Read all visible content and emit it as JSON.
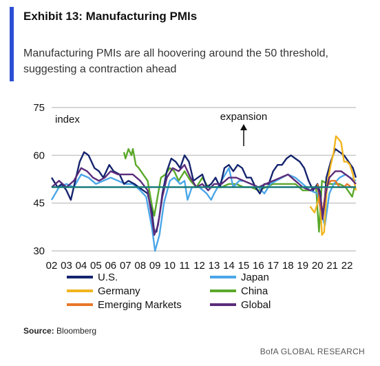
{
  "header": {
    "title": "Exhibit 13: Manufacturing PMIs",
    "subtitle": "Manufacturing PMIs are all hoovering around the 50 threshold, suggesting a contraction ahead"
  },
  "source": {
    "label": "Source:",
    "text": "Bloomberg"
  },
  "footer": {
    "brand": "BofA GLOBAL RESEARCH"
  },
  "colors": {
    "accent": "#2b4fd4",
    "us": "#14246e",
    "japan": "#4aa6e8",
    "germany": "#f2b51d",
    "china": "#5aa82a",
    "em": "#e8782a",
    "global": "#5b2b7a",
    "threshold": "#1a7a7a",
    "grid": "#c8c8c8"
  },
  "chart_data": {
    "type": "line",
    "ylabel": "index",
    "annotation": "expansion",
    "ylim": [
      30,
      75
    ],
    "yticks": [
      30,
      45,
      60,
      75
    ],
    "xlim": [
      2002.0,
      2022.6
    ],
    "xtick_labels": [
      "02",
      "03",
      "04",
      "05",
      "06",
      "07",
      "08",
      "09",
      "10",
      "11",
      "12",
      "13",
      "14",
      "15",
      "16",
      "17",
      "18",
      "19",
      "20",
      "21",
      "22"
    ],
    "threshold": 50,
    "grid": true,
    "legend_placement": "bottom",
    "series": [
      {
        "name": "U.S.",
        "key": "us",
        "points": [
          [
            2002.0,
            53
          ],
          [
            2002.4,
            50
          ],
          [
            2002.7,
            51
          ],
          [
            2003.0,
            49
          ],
          [
            2003.3,
            46
          ],
          [
            2003.6,
            52
          ],
          [
            2003.9,
            58
          ],
          [
            2004.2,
            61
          ],
          [
            2004.5,
            60
          ],
          [
            2004.9,
            56
          ],
          [
            2005.2,
            55
          ],
          [
            2005.5,
            53
          ],
          [
            2005.9,
            57
          ],
          [
            2006.2,
            55
          ],
          [
            2006.6,
            54
          ],
          [
            2006.9,
            51
          ],
          [
            2007.2,
            52
          ],
          [
            2007.6,
            51
          ],
          [
            2007.9,
            50
          ],
          [
            2008.2,
            49
          ],
          [
            2008.5,
            48
          ],
          [
            2008.8,
            42
          ],
          [
            2008.95,
            36
          ],
          [
            2009.1,
            36
          ],
          [
            2009.3,
            41
          ],
          [
            2009.5,
            48
          ],
          [
            2009.8,
            55
          ],
          [
            2010.1,
            59
          ],
          [
            2010.4,
            58
          ],
          [
            2010.7,
            56
          ],
          [
            2011.0,
            60
          ],
          [
            2011.3,
            58
          ],
          [
            2011.6,
            52
          ],
          [
            2011.9,
            53
          ],
          [
            2012.2,
            54
          ],
          [
            2012.5,
            50
          ],
          [
            2012.8,
            51
          ],
          [
            2013.1,
            53
          ],
          [
            2013.4,
            50
          ],
          [
            2013.7,
            56
          ],
          [
            2014.0,
            57
          ],
          [
            2014.3,
            55
          ],
          [
            2014.6,
            57
          ],
          [
            2014.9,
            56
          ],
          [
            2015.2,
            53
          ],
          [
            2015.5,
            53
          ],
          [
            2015.8,
            50
          ],
          [
            2016.1,
            48
          ],
          [
            2016.4,
            51
          ],
          [
            2016.7,
            51
          ],
          [
            2017.0,
            55
          ],
          [
            2017.3,
            57
          ],
          [
            2017.6,
            57
          ],
          [
            2017.9,
            59
          ],
          [
            2018.2,
            60
          ],
          [
            2018.5,
            59
          ],
          [
            2018.8,
            58
          ],
          [
            2019.1,
            56
          ],
          [
            2019.4,
            52
          ],
          [
            2019.7,
            49
          ],
          [
            2020.0,
            51
          ],
          [
            2020.2,
            48
          ],
          [
            2020.3,
            42
          ],
          [
            2020.45,
            44
          ],
          [
            2020.6,
            53
          ],
          [
            2020.9,
            58
          ],
          [
            2021.2,
            62
          ],
          [
            2021.5,
            61
          ],
          [
            2021.8,
            60
          ],
          [
            2022.1,
            58
          ],
          [
            2022.4,
            56
          ],
          [
            2022.6,
            53
          ]
        ]
      },
      {
        "name": "Japan",
        "key": "japan",
        "points": [
          [
            2002.0,
            46
          ],
          [
            2002.5,
            50
          ],
          [
            2003.0,
            51
          ],
          [
            2003.5,
            50
          ],
          [
            2004.0,
            54
          ],
          [
            2004.5,
            53
          ],
          [
            2005.0,
            51
          ],
          [
            2005.5,
            52
          ],
          [
            2006.0,
            53
          ],
          [
            2006.5,
            52
          ],
          [
            2007.0,
            51
          ],
          [
            2007.5,
            51
          ],
          [
            2008.0,
            49
          ],
          [
            2008.4,
            47
          ],
          [
            2008.8,
            37
          ],
          [
            2009.0,
            30
          ],
          [
            2009.3,
            35
          ],
          [
            2009.6,
            45
          ],
          [
            2010.0,
            52
          ],
          [
            2010.3,
            53
          ],
          [
            2010.7,
            51
          ],
          [
            2011.0,
            52
          ],
          [
            2011.2,
            46
          ],
          [
            2011.5,
            50
          ],
          [
            2012.0,
            50
          ],
          [
            2012.5,
            48
          ],
          [
            2012.8,
            46
          ],
          [
            2013.0,
            48
          ],
          [
            2013.5,
            52
          ],
          [
            2014.0,
            56
          ],
          [
            2014.3,
            50
          ],
          [
            2014.7,
            52
          ],
          [
            2015.0,
            52
          ],
          [
            2015.5,
            51
          ],
          [
            2016.0,
            50
          ],
          [
            2016.4,
            48
          ],
          [
            2016.8,
            51
          ],
          [
            2017.2,
            52
          ],
          [
            2017.6,
            53
          ],
          [
            2018.0,
            54
          ],
          [
            2018.5,
            53
          ],
          [
            2019.0,
            51
          ],
          [
            2019.5,
            49
          ],
          [
            2020.0,
            48
          ],
          [
            2020.3,
            41
          ],
          [
            2020.5,
            38
          ],
          [
            2020.8,
            48
          ],
          [
            2021.1,
            51
          ],
          [
            2021.5,
            53
          ],
          [
            2021.9,
            54
          ],
          [
            2022.2,
            53
          ],
          [
            2022.6,
            52
          ]
        ]
      },
      {
        "name": "Germany",
        "key": "germany",
        "points": [
          [
            2019.5,
            44
          ],
          [
            2019.8,
            42
          ],
          [
            2020.0,
            45
          ],
          [
            2020.15,
            48
          ],
          [
            2020.3,
            35
          ],
          [
            2020.45,
            36
          ],
          [
            2020.65,
            51
          ],
          [
            2020.9,
            57
          ],
          [
            2021.1,
            61
          ],
          [
            2021.25,
            66
          ],
          [
            2021.45,
            65
          ],
          [
            2021.6,
            64
          ],
          [
            2021.8,
            58
          ],
          [
            2022.0,
            58
          ],
          [
            2022.2,
            57
          ],
          [
            2022.4,
            54
          ],
          [
            2022.6,
            49
          ]
        ]
      },
      {
        "name": "China",
        "key": "china",
        "points": [
          [
            2006.9,
            61
          ],
          [
            2007.0,
            59
          ],
          [
            2007.2,
            62
          ],
          [
            2007.4,
            60
          ],
          [
            2007.5,
            62
          ],
          [
            2007.7,
            57
          ],
          [
            2007.9,
            56
          ],
          [
            2008.2,
            54
          ],
          [
            2008.5,
            52
          ],
          [
            2008.8,
            44
          ],
          [
            2008.95,
            41
          ],
          [
            2009.1,
            45
          ],
          [
            2009.4,
            53
          ],
          [
            2009.7,
            54
          ],
          [
            2010.0,
            56
          ],
          [
            2010.3,
            55
          ],
          [
            2010.6,
            52
          ],
          [
            2011.0,
            55
          ],
          [
            2011.4,
            52
          ],
          [
            2011.8,
            50
          ],
          [
            2012.2,
            53
          ],
          [
            2012.6,
            50
          ],
          [
            2013.0,
            50
          ],
          [
            2013.5,
            50
          ],
          [
            2014.0,
            51
          ],
          [
            2014.5,
            51
          ],
          [
            2015.0,
            50
          ],
          [
            2015.5,
            50
          ],
          [
            2016.0,
            49
          ],
          [
            2016.5,
            50
          ],
          [
            2017.0,
            51
          ],
          [
            2017.5,
            51
          ],
          [
            2018.0,
            51
          ],
          [
            2018.5,
            51
          ],
          [
            2019.0,
            49
          ],
          [
            2019.5,
            49
          ],
          [
            2019.9,
            50
          ],
          [
            2020.1,
            36
          ],
          [
            2020.3,
            52
          ],
          [
            2020.7,
            51
          ],
          [
            2021.0,
            51
          ],
          [
            2021.5,
            51
          ],
          [
            2021.9,
            50
          ],
          [
            2022.2,
            48
          ],
          [
            2022.35,
            47
          ],
          [
            2022.5,
            50
          ]
        ]
      },
      {
        "name": "Emerging Markets",
        "key": "em",
        "points": [
          [
            2020.0,
            51
          ],
          [
            2020.2,
            43
          ],
          [
            2020.4,
            44
          ],
          [
            2020.6,
            50
          ],
          [
            2020.9,
            52
          ],
          [
            2021.2,
            52
          ],
          [
            2021.5,
            50
          ],
          [
            2021.8,
            50
          ],
          [
            2022.0,
            51
          ],
          [
            2022.3,
            50
          ],
          [
            2022.6,
            50
          ]
        ]
      },
      {
        "name": "Global",
        "key": "global",
        "points": [
          [
            2002.0,
            50
          ],
          [
            2002.5,
            52
          ],
          [
            2003.0,
            50
          ],
          [
            2003.5,
            52
          ],
          [
            2004.0,
            56
          ],
          [
            2004.4,
            55
          ],
          [
            2004.8,
            53
          ],
          [
            2005.2,
            52
          ],
          [
            2005.6,
            53
          ],
          [
            2006.0,
            55
          ],
          [
            2006.5,
            54
          ],
          [
            2007.0,
            54
          ],
          [
            2007.5,
            54
          ],
          [
            2008.0,
            52
          ],
          [
            2008.5,
            49
          ],
          [
            2008.8,
            40
          ],
          [
            2008.95,
            35
          ],
          [
            2009.2,
            38
          ],
          [
            2009.5,
            47
          ],
          [
            2009.8,
            53
          ],
          [
            2010.2,
            56
          ],
          [
            2010.6,
            55
          ],
          [
            2011.0,
            57
          ],
          [
            2011.4,
            53
          ],
          [
            2011.8,
            50
          ],
          [
            2012.2,
            51
          ],
          [
            2012.6,
            49
          ],
          [
            2013.0,
            51
          ],
          [
            2013.5,
            51
          ],
          [
            2014.0,
            53
          ],
          [
            2014.5,
            53
          ],
          [
            2015.0,
            52
          ],
          [
            2015.5,
            51
          ],
          [
            2016.0,
            50
          ],
          [
            2016.5,
            51
          ],
          [
            2017.0,
            52
          ],
          [
            2017.5,
            53
          ],
          [
            2018.0,
            54
          ],
          [
            2018.5,
            52
          ],
          [
            2019.0,
            50
          ],
          [
            2019.5,
            49
          ],
          [
            2020.0,
            50
          ],
          [
            2020.2,
            47
          ],
          [
            2020.35,
            40
          ],
          [
            2020.55,
            48
          ],
          [
            2020.8,
            53
          ],
          [
            2021.2,
            55
          ],
          [
            2021.6,
            55
          ],
          [
            2021.9,
            54
          ],
          [
            2022.2,
            53
          ],
          [
            2022.6,
            51
          ]
        ]
      }
    ]
  }
}
